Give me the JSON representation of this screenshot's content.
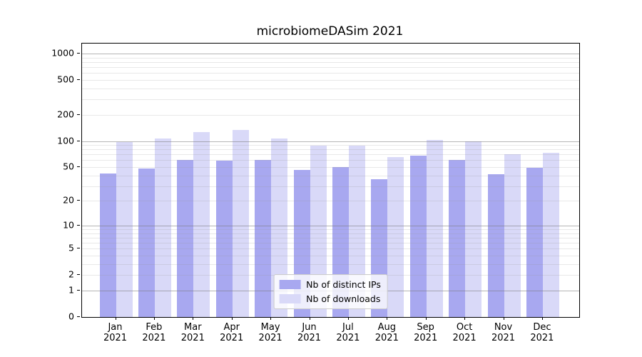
{
  "chart_data": {
    "type": "bar",
    "title": "microbiomeDASim 2021",
    "categories": [
      "Jan 2021",
      "Feb 2021",
      "Mar 2021",
      "Apr 2021",
      "May 2021",
      "Jun 2021",
      "Jul 2021",
      "Aug 2021",
      "Sep 2021",
      "Oct 2021",
      "Nov 2021",
      "Dec 2021"
    ],
    "series": [
      {
        "name": "Nb of distinct IPs",
        "color": "#a8a8f0",
        "values": [
          42,
          48,
          61,
          59,
          60,
          46,
          50,
          36,
          68,
          61,
          41,
          49
        ]
      },
      {
        "name": "Nb of downloads",
        "color": "#d9d9f8",
        "values": [
          97,
          106,
          127,
          133,
          106,
          88,
          88,
          65,
          102,
          100,
          71,
          73
        ]
      }
    ],
    "yscale": "log1p",
    "ylim": [
      0,
      1300
    ],
    "yticks": [
      0,
      1,
      2,
      5,
      10,
      20,
      50,
      100,
      200,
      500,
      1000
    ],
    "major_gridlines": [
      1,
      10,
      100,
      1000
    ],
    "minor_gridlines": [
      2,
      3,
      4,
      5,
      6,
      7,
      8,
      9,
      20,
      30,
      40,
      50,
      60,
      70,
      80,
      90,
      200,
      300,
      400,
      500,
      600,
      700,
      800,
      900
    ],
    "xlabel": "",
    "ylabel": "",
    "grid": true,
    "legend": {
      "position": "lower center",
      "entries": [
        "Nb of distinct IPs",
        "Nb of downloads"
      ]
    }
  }
}
